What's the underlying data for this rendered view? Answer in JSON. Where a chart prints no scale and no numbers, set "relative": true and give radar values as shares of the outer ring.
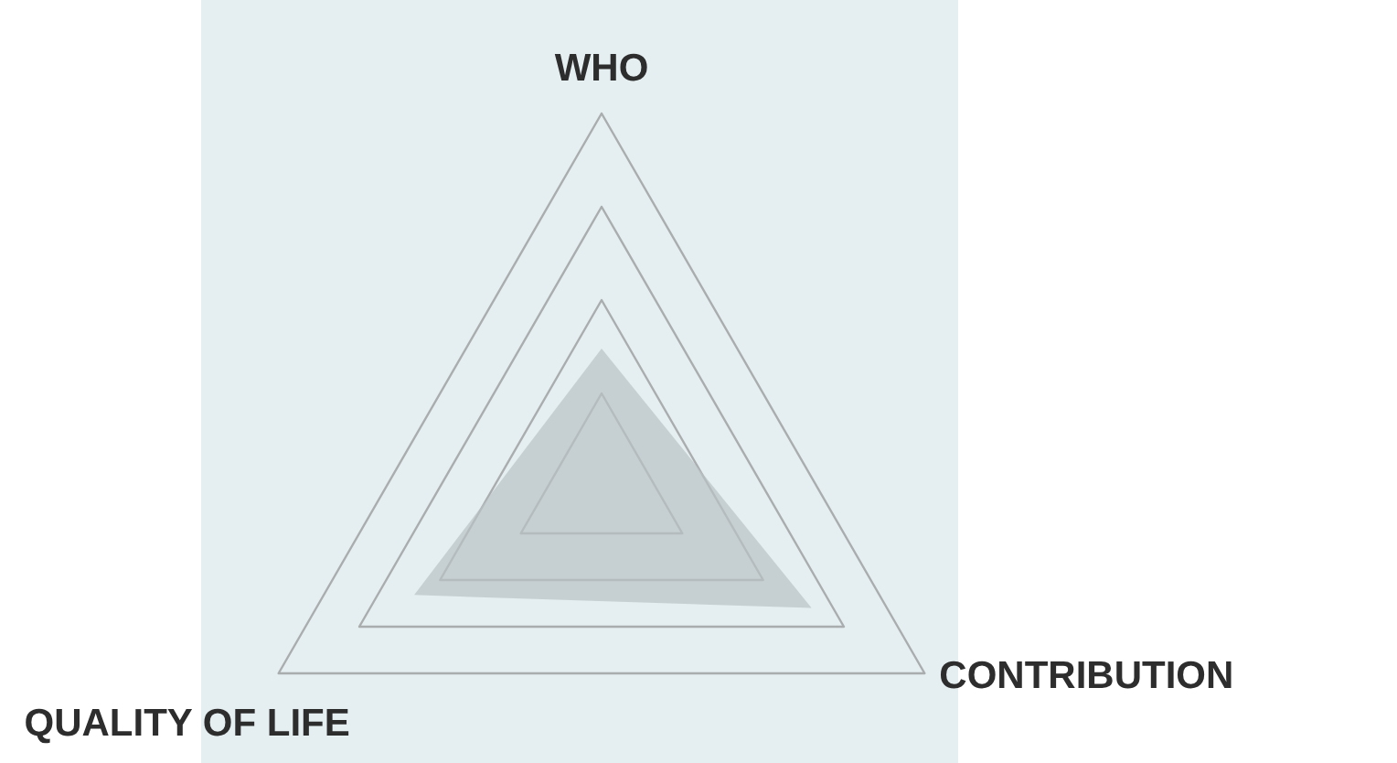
{
  "chart_data": {
    "type": "radar",
    "relative": true,
    "grid": true,
    "categories": [
      "WHO",
      "CONTRIBUTION",
      "QUALITY OF LIFE"
    ],
    "series": [
      {
        "color": "#b9c2c5",
        "values": [
          0.37,
          0.65,
          0.58
        ]
      }
    ]
  }
}
